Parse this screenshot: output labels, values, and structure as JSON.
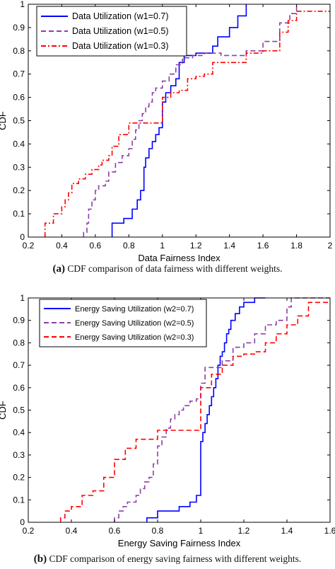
{
  "captions": {
    "a_tag": "(a)",
    "a_text": " CDF comparison of data fairness with different weights.",
    "b_tag": "(b)",
    "b_text": " CDF comparison of energy saving fairness with different weights."
  },
  "chart_data": [
    {
      "type": "line",
      "title": "",
      "xlabel": "Data Fairness Index",
      "ylabel": "CDF",
      "xlim": [
        0.2,
        2
      ],
      "ylim": [
        0,
        1
      ],
      "xticks": [
        "0.2",
        "0.4",
        "0.6",
        "0.8",
        "1",
        "1.2",
        "1.4",
        "1.6",
        "1.8",
        "2"
      ],
      "yticks": [
        "0",
        "0.1",
        "0.2",
        "0.3",
        "0.4",
        "0.5",
        "0.6",
        "0.7",
        "0.8",
        "0.9",
        "1"
      ],
      "grid": false,
      "legend_position": "top-left",
      "series": [
        {
          "name": "Data Utilization (w1=0.7)",
          "color": "#0000ff",
          "dash": "solid",
          "x": [
            0.7,
            0.7,
            0.77,
            0.77,
            0.82,
            0.82,
            0.85,
            0.85,
            0.87,
            0.87,
            0.89,
            0.89,
            0.9,
            0.9,
            0.92,
            0.92,
            0.94,
            0.94,
            0.96,
            0.96,
            0.98,
            0.98,
            1.0,
            1.0,
            1.02,
            1.02,
            1.05,
            1.05,
            1.08,
            1.08,
            1.1,
            1.1,
            1.13,
            1.13,
            1.2,
            1.2,
            1.3,
            1.3,
            1.33,
            1.33,
            1.4,
            1.4,
            1.45,
            1.45,
            1.5,
            1.5
          ],
          "y": [
            0,
            0.06,
            0.06,
            0.08,
            0.08,
            0.12,
            0.12,
            0.16,
            0.16,
            0.2,
            0.2,
            0.3,
            0.3,
            0.34,
            0.34,
            0.38,
            0.38,
            0.41,
            0.41,
            0.44,
            0.44,
            0.47,
            0.47,
            0.58,
            0.58,
            0.62,
            0.62,
            0.65,
            0.65,
            0.68,
            0.68,
            0.75,
            0.75,
            0.78,
            0.78,
            0.79,
            0.79,
            0.82,
            0.82,
            0.86,
            0.86,
            0.9,
            0.9,
            0.95,
            0.95,
            1.0
          ]
        },
        {
          "name": "Data Utilization (w1=0.5)",
          "color": "#8b3fa8",
          "dash": "dashed",
          "x": [
            0.53,
            0.53,
            0.55,
            0.55,
            0.56,
            0.56,
            0.58,
            0.58,
            0.6,
            0.6,
            0.62,
            0.62,
            0.66,
            0.66,
            0.68,
            0.68,
            0.72,
            0.72,
            0.76,
            0.76,
            0.8,
            0.8,
            0.82,
            0.82,
            0.84,
            0.84,
            0.86,
            0.86,
            0.88,
            0.88,
            0.9,
            0.9,
            0.92,
            0.92,
            0.94,
            0.94,
            0.96,
            0.96,
            1.0,
            1.0,
            1.04,
            1.04,
            1.08,
            1.08,
            1.12,
            1.12,
            1.18,
            1.18,
            1.25,
            1.25,
            1.35,
            1.35,
            1.5,
            1.5,
            1.6,
            1.6,
            1.7,
            1.7,
            1.76,
            1.76,
            1.8,
            1.8
          ],
          "y": [
            0,
            0.02,
            0.02,
            0.06,
            0.06,
            0.12,
            0.12,
            0.16,
            0.16,
            0.2,
            0.2,
            0.22,
            0.22,
            0.24,
            0.24,
            0.28,
            0.28,
            0.32,
            0.32,
            0.35,
            0.35,
            0.38,
            0.38,
            0.42,
            0.42,
            0.46,
            0.46,
            0.5,
            0.5,
            0.53,
            0.53,
            0.56,
            0.56,
            0.58,
            0.58,
            0.62,
            0.62,
            0.64,
            0.64,
            0.67,
            0.67,
            0.7,
            0.7,
            0.74,
            0.74,
            0.77,
            0.77,
            0.78,
            0.78,
            0.79,
            0.79,
            0.78,
            0.78,
            0.8,
            0.8,
            0.84,
            0.84,
            0.92,
            0.92,
            0.96,
            0.96,
            1.0
          ]
        },
        {
          "name": "Data Utilization (w1=0.3)",
          "color": "#ff0000",
          "dash": "dashdot",
          "x": [
            0.3,
            0.3,
            0.35,
            0.35,
            0.4,
            0.4,
            0.42,
            0.42,
            0.44,
            0.44,
            0.46,
            0.46,
            0.5,
            0.5,
            0.54,
            0.54,
            0.58,
            0.58,
            0.62,
            0.62,
            0.64,
            0.64,
            0.68,
            0.68,
            0.7,
            0.7,
            0.74,
            0.74,
            0.8,
            0.8,
            0.9,
            0.9,
            1.0,
            1.0,
            1.05,
            1.05,
            1.1,
            1.1,
            1.15,
            1.15,
            1.2,
            1.2,
            1.25,
            1.25,
            1.3,
            1.3,
            1.5,
            1.5,
            1.6,
            1.6,
            1.7,
            1.7,
            1.75,
            1.75,
            1.8,
            1.8,
            2.0
          ],
          "y": [
            0,
            0.06,
            0.06,
            0.1,
            0.1,
            0.13,
            0.13,
            0.16,
            0.16,
            0.19,
            0.19,
            0.23,
            0.23,
            0.25,
            0.25,
            0.27,
            0.27,
            0.29,
            0.29,
            0.31,
            0.31,
            0.33,
            0.33,
            0.35,
            0.35,
            0.39,
            0.39,
            0.44,
            0.44,
            0.49,
            0.49,
            0.49,
            0.49,
            0.6,
            0.6,
            0.62,
            0.62,
            0.63,
            0.63,
            0.68,
            0.68,
            0.69,
            0.69,
            0.7,
            0.7,
            0.75,
            0.75,
            0.79,
            0.79,
            0.8,
            0.8,
            0.88,
            0.88,
            0.93,
            0.93,
            0.97,
            0.97
          ]
        }
      ]
    },
    {
      "type": "line",
      "title": "",
      "xlabel": "Energy Saving Fairness Index",
      "ylabel": "CDF",
      "xlim": [
        0.2,
        1.6
      ],
      "ylim": [
        0,
        1
      ],
      "xticks": [
        "0.2",
        "0.4",
        "0.6",
        "0.8",
        "1",
        "1.2",
        "1.4",
        "1.6"
      ],
      "yticks": [
        "0",
        "0.1",
        "0.2",
        "0.3",
        "0.4",
        "0.5",
        "0.6",
        "0.7",
        "0.8",
        "0.9",
        "1"
      ],
      "grid": false,
      "legend_position": "top-left",
      "series": [
        {
          "name": "Energy Saving Utilization (w2=0.7)",
          "color": "#0000ff",
          "dash": "solid",
          "x": [
            0.75,
            0.75,
            0.8,
            0.8,
            0.9,
            0.9,
            0.95,
            0.95,
            0.98,
            0.98,
            1.0,
            1.0,
            1.01,
            1.01,
            1.02,
            1.02,
            1.03,
            1.03,
            1.04,
            1.04,
            1.05,
            1.05,
            1.06,
            1.06,
            1.07,
            1.07,
            1.08,
            1.08,
            1.09,
            1.09,
            1.1,
            1.1,
            1.11,
            1.11,
            1.12,
            1.12,
            1.13,
            1.13,
            1.14,
            1.14,
            1.16,
            1.16,
            1.18,
            1.18,
            1.2,
            1.2,
            1.25,
            1.25,
            1.3
          ],
          "y": [
            0,
            0.02,
            0.02,
            0.05,
            0.05,
            0.07,
            0.07,
            0.09,
            0.09,
            0.12,
            0.12,
            0.36,
            0.36,
            0.4,
            0.4,
            0.44,
            0.44,
            0.48,
            0.48,
            0.52,
            0.52,
            0.56,
            0.56,
            0.6,
            0.6,
            0.64,
            0.64,
            0.7,
            0.7,
            0.74,
            0.74,
            0.76,
            0.76,
            0.8,
            0.8,
            0.84,
            0.84,
            0.86,
            0.86,
            0.9,
            0.9,
            0.93,
            0.93,
            0.96,
            0.96,
            0.98,
            0.98,
            1.0,
            1.0
          ]
        },
        {
          "name": "Energy Saving Utilization (w2=0.5)",
          "color": "#8b3fa8",
          "dash": "dashed",
          "x": [
            0.6,
            0.6,
            0.62,
            0.62,
            0.64,
            0.64,
            0.66,
            0.66,
            0.7,
            0.7,
            0.72,
            0.72,
            0.74,
            0.74,
            0.76,
            0.76,
            0.78,
            0.78,
            0.8,
            0.8,
            0.82,
            0.82,
            0.84,
            0.84,
            0.86,
            0.86,
            0.88,
            0.88,
            0.9,
            0.9,
            0.92,
            0.92,
            0.95,
            0.95,
            0.98,
            0.98,
            1.0,
            1.0,
            1.02,
            1.02,
            1.1,
            1.1,
            1.15,
            1.15,
            1.2,
            1.2,
            1.25,
            1.25,
            1.3,
            1.3,
            1.35,
            1.35,
            1.4,
            1.4,
            1.42,
            1.42,
            1.6
          ],
          "y": [
            0,
            0.02,
            0.02,
            0.05,
            0.05,
            0.07,
            0.07,
            0.09,
            0.09,
            0.12,
            0.12,
            0.15,
            0.15,
            0.18,
            0.18,
            0.2,
            0.2,
            0.26,
            0.26,
            0.34,
            0.34,
            0.38,
            0.38,
            0.42,
            0.42,
            0.46,
            0.46,
            0.48,
            0.48,
            0.5,
            0.5,
            0.52,
            0.52,
            0.54,
            0.54,
            0.55,
            0.55,
            0.62,
            0.62,
            0.69,
            0.69,
            0.72,
            0.72,
            0.78,
            0.78,
            0.8,
            0.8,
            0.84,
            0.84,
            0.88,
            0.88,
            0.9,
            0.9,
            0.96,
            0.96,
            1.0,
            1.0
          ]
        },
        {
          "name": "Energy Saving Utilization (w2=0.3)",
          "color": "#ff0000",
          "dash": "dashed",
          "x": [
            0.35,
            0.35,
            0.37,
            0.37,
            0.4,
            0.4,
            0.45,
            0.45,
            0.5,
            0.5,
            0.55,
            0.55,
            0.6,
            0.6,
            0.65,
            0.65,
            0.7,
            0.7,
            0.8,
            0.8,
            0.85,
            0.85,
            0.9,
            0.9,
            1.0,
            1.0,
            1.05,
            1.05,
            1.1,
            1.1,
            1.15,
            1.15,
            1.2,
            1.2,
            1.25,
            1.25,
            1.3,
            1.3,
            1.35,
            1.35,
            1.4,
            1.4,
            1.45,
            1.45,
            1.5,
            1.5,
            1.55,
            1.55,
            1.6
          ],
          "y": [
            0,
            0.02,
            0.02,
            0.05,
            0.05,
            0.07,
            0.07,
            0.12,
            0.12,
            0.14,
            0.14,
            0.2,
            0.2,
            0.28,
            0.28,
            0.33,
            0.33,
            0.37,
            0.37,
            0.41,
            0.41,
            0.41,
            0.41,
            0.41,
            0.41,
            0.6,
            0.6,
            0.66,
            0.66,
            0.7,
            0.7,
            0.74,
            0.74,
            0.75,
            0.75,
            0.76,
            0.76,
            0.8,
            0.8,
            0.84,
            0.84,
            0.88,
            0.88,
            0.92,
            0.92,
            0.98,
            0.98,
            0.98,
            0.98
          ]
        }
      ]
    }
  ]
}
